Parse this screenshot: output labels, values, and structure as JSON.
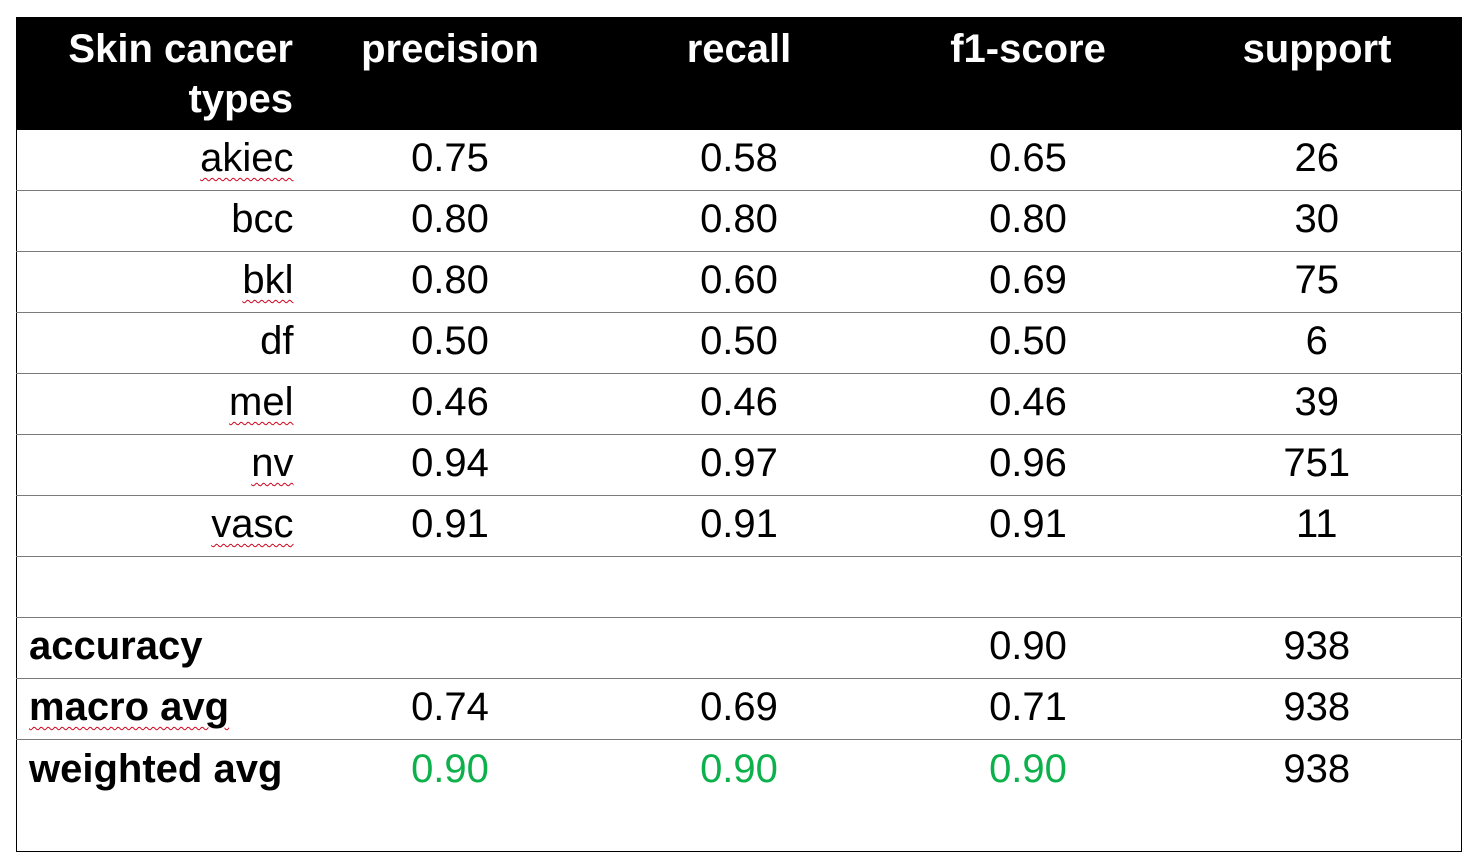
{
  "table": {
    "headers": [
      "Skin cancer types",
      "precision",
      "recall",
      "f1-score",
      "support"
    ],
    "rows": [
      {
        "label": "akiec",
        "precision": "0.75",
        "recall": "0.58",
        "f1": "0.65",
        "support": "26"
      },
      {
        "label": "bcc",
        "precision": "0.80",
        "recall": "0.80",
        "f1": "0.80",
        "support": "30"
      },
      {
        "label": "bkl",
        "precision": "0.80",
        "recall": "0.60",
        "f1": "0.69",
        "support": "75"
      },
      {
        "label": "df",
        "precision": "0.50",
        "recall": "0.50",
        "f1": "0.50",
        "support": "6"
      },
      {
        "label": "mel",
        "precision": "0.46",
        "recall": "0.46",
        "f1": "0.46",
        "support": "39"
      },
      {
        "label": "nv",
        "precision": "0.94",
        "recall": "0.97",
        "f1": "0.96",
        "support": "751"
      },
      {
        "label": "vasc",
        "precision": "0.91",
        "recall": "0.91",
        "f1": "0.91",
        "support": "11"
      }
    ],
    "summary": {
      "accuracy": {
        "label": "accuracy",
        "f1": "0.90",
        "support": "938"
      },
      "macro_avg": {
        "label": "macro avg",
        "precision": "0.74",
        "recall": "0.69",
        "f1": "0.71",
        "support": "938"
      },
      "weighted_avg": {
        "label": "weighted avg",
        "precision": "0.90",
        "recall": "0.90",
        "f1": "0.90",
        "support": "938"
      }
    },
    "colors": {
      "header_bg": "#000000",
      "header_text": "#ffffff",
      "highlight": "#0cb14b"
    }
  }
}
